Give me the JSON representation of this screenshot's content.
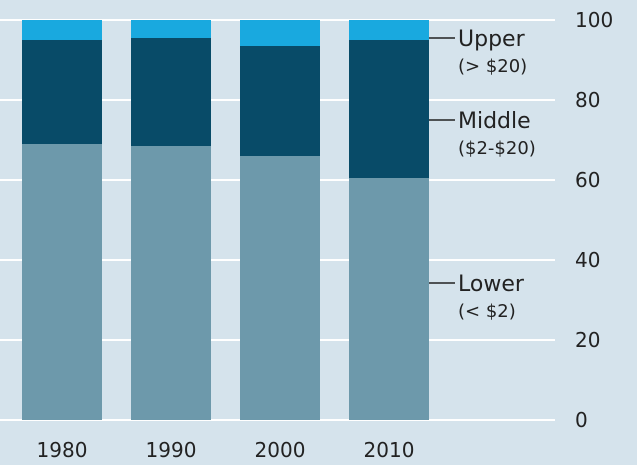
{
  "chart_data": {
    "type": "bar",
    "stacked": true,
    "categories": [
      "1980",
      "1990",
      "2000",
      "2010"
    ],
    "series": [
      {
        "name": "Lower",
        "range": "(< $2)",
        "values": [
          69,
          68.5,
          66,
          60.5
        ]
      },
      {
        "name": "Middle",
        "range": "($2-$20)",
        "values": [
          26,
          27,
          27.5,
          34.5
        ]
      },
      {
        "name": "Upper",
        "range": "(> $20)",
        "values": [
          5,
          4.5,
          6.5,
          5
        ]
      }
    ],
    "ylim": [
      0,
      100
    ],
    "yticks": [
      0,
      20,
      40,
      60,
      80,
      100
    ],
    "grid": true,
    "y_axis_position": "right",
    "legend_placement": "right, labels pointing to series",
    "colors": {
      "background": "#d5e3ec",
      "grid": "#ffffff",
      "Lower": "#6d99ab",
      "Middle": "#084b68",
      "Upper": "#19a9df"
    }
  }
}
